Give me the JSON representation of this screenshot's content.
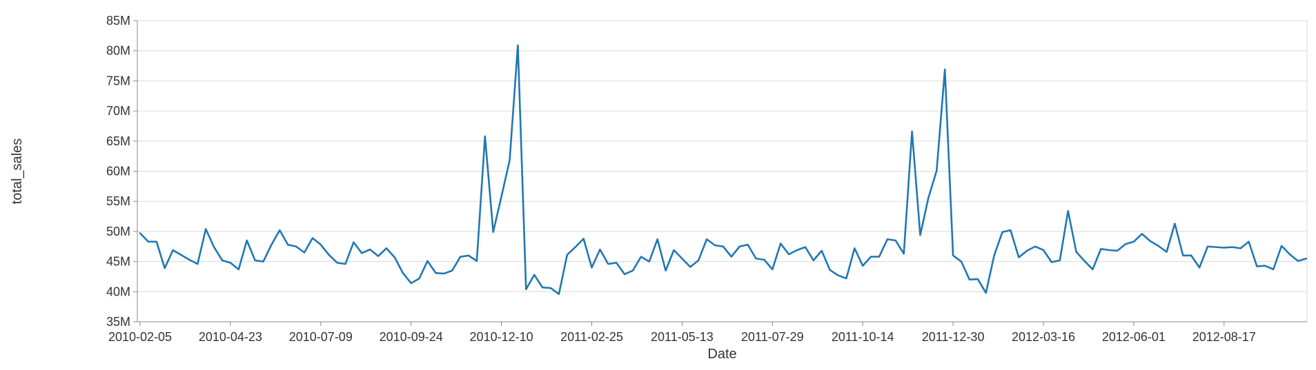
{
  "chart_data": {
    "type": "line",
    "title": "",
    "xlabel": "Date",
    "ylabel": "total_sales",
    "ylim": [
      35000000,
      85000000
    ],
    "y_ticks": [
      35000000,
      40000000,
      45000000,
      50000000,
      55000000,
      60000000,
      65000000,
      70000000,
      75000000,
      80000000,
      85000000
    ],
    "y_tick_labels": [
      "35M",
      "40M",
      "45M",
      "50M",
      "55M",
      "60M",
      "65M",
      "70M",
      "75M",
      "80M",
      "85M"
    ],
    "x_start": "2010-02-05",
    "x_step_days": 7,
    "x_ticks": [
      "2010-02-05",
      "2010-04-23",
      "2010-07-09",
      "2010-09-24",
      "2010-12-10",
      "2011-02-25",
      "2011-05-13",
      "2011-07-29",
      "2011-10-14",
      "2011-12-30",
      "2012-03-16",
      "2012-06-01",
      "2012-08-17"
    ],
    "grid": true,
    "color": "#1f77b4",
    "series": [
      {
        "name": "",
        "values": [
          49700000,
          48300000,
          48300000,
          43900000,
          46900000,
          46100000,
          45300000,
          44600000,
          50400000,
          47400000,
          45200000,
          44800000,
          43700000,
          48500000,
          45200000,
          45000000,
          47800000,
          50200000,
          47800000,
          47500000,
          46500000,
          48900000,
          47800000,
          46100000,
          44800000,
          44600000,
          48200000,
          46400000,
          47000000,
          45900000,
          47200000,
          45700000,
          43100000,
          41400000,
          42200000,
          45100000,
          43100000,
          43000000,
          43500000,
          45800000,
          46000000,
          45100000,
          65800000,
          49900000,
          55800000,
          61800000,
          80900000,
          40400000,
          42800000,
          40700000,
          40600000,
          39600000,
          46100000,
          47400000,
          48800000,
          44000000,
          47000000,
          44600000,
          44800000,
          42900000,
          43500000,
          45800000,
          45000000,
          48700000,
          43500000,
          46900000,
          45500000,
          44100000,
          45200000,
          48700000,
          47700000,
          47500000,
          45800000,
          47500000,
          47800000,
          45500000,
          45300000,
          43700000,
          48000000,
          46200000,
          46900000,
          47400000,
          45200000,
          46800000,
          43600000,
          42700000,
          42200000,
          47200000,
          44300000,
          45800000,
          45800000,
          48700000,
          48500000,
          46300000,
          66600000,
          49400000,
          55600000,
          60100000,
          76900000,
          46000000,
          45000000,
          42000000,
          42100000,
          39800000,
          46000000,
          49900000,
          50200000,
          45700000,
          46800000,
          47500000,
          46900000,
          44900000,
          45200000,
          53400000,
          46600000,
          45100000,
          43700000,
          47100000,
          46900000,
          46800000,
          47900000,
          48300000,
          49600000,
          48400000,
          47600000,
          46600000,
          51300000,
          46000000,
          46000000,
          44000000,
          47500000,
          47400000,
          47300000,
          47400000,
          47200000,
          48300000,
          44200000,
          44300000,
          43700000,
          47600000,
          46200000,
          45100000,
          45500000
        ]
      }
    ]
  }
}
